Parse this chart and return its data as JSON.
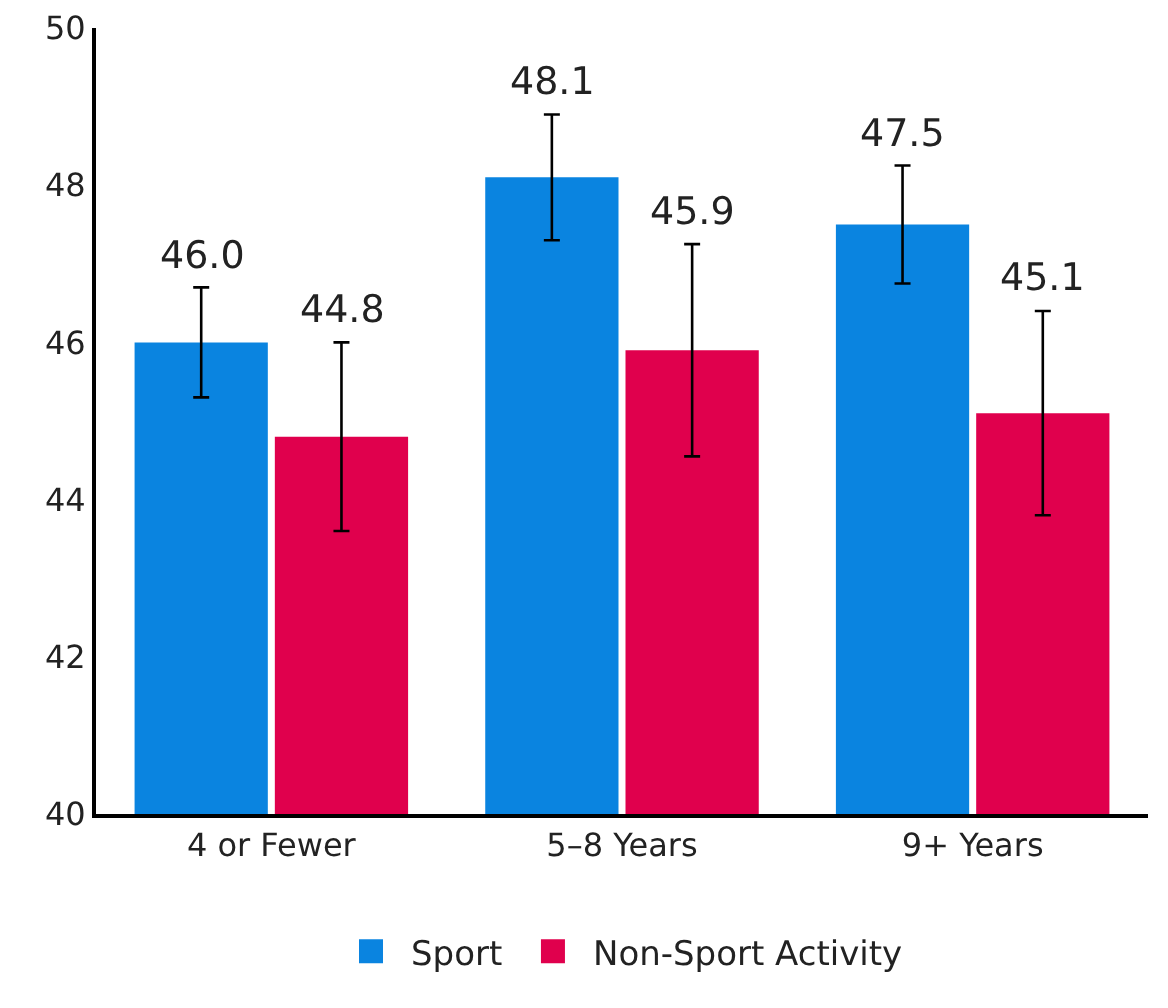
{
  "chart_data": {
    "type": "bar",
    "categories": [
      "4 or Fewer",
      "5–8 Years",
      "9+ Years"
    ],
    "series": [
      {
        "name": "Sport",
        "color": "#0a84e0",
        "values": [
          46.0,
          48.1,
          47.5
        ],
        "errors": [
          0.7,
          0.8,
          0.75
        ],
        "value_labels": [
          "46.0",
          "48.1",
          "47.5"
        ]
      },
      {
        "name": "Non-Sport Activity",
        "color": "#e0004d",
        "values": [
          44.8,
          45.9,
          45.1
        ],
        "errors": [
          1.2,
          1.35,
          1.3
        ],
        "value_labels": [
          "44.8",
          "45.9",
          "45.1"
        ]
      }
    ],
    "ylim": [
      40,
      50
    ],
    "yticks": [
      40,
      42,
      44,
      46,
      48,
      50
    ],
    "grid": false,
    "legend": "bottom"
  }
}
